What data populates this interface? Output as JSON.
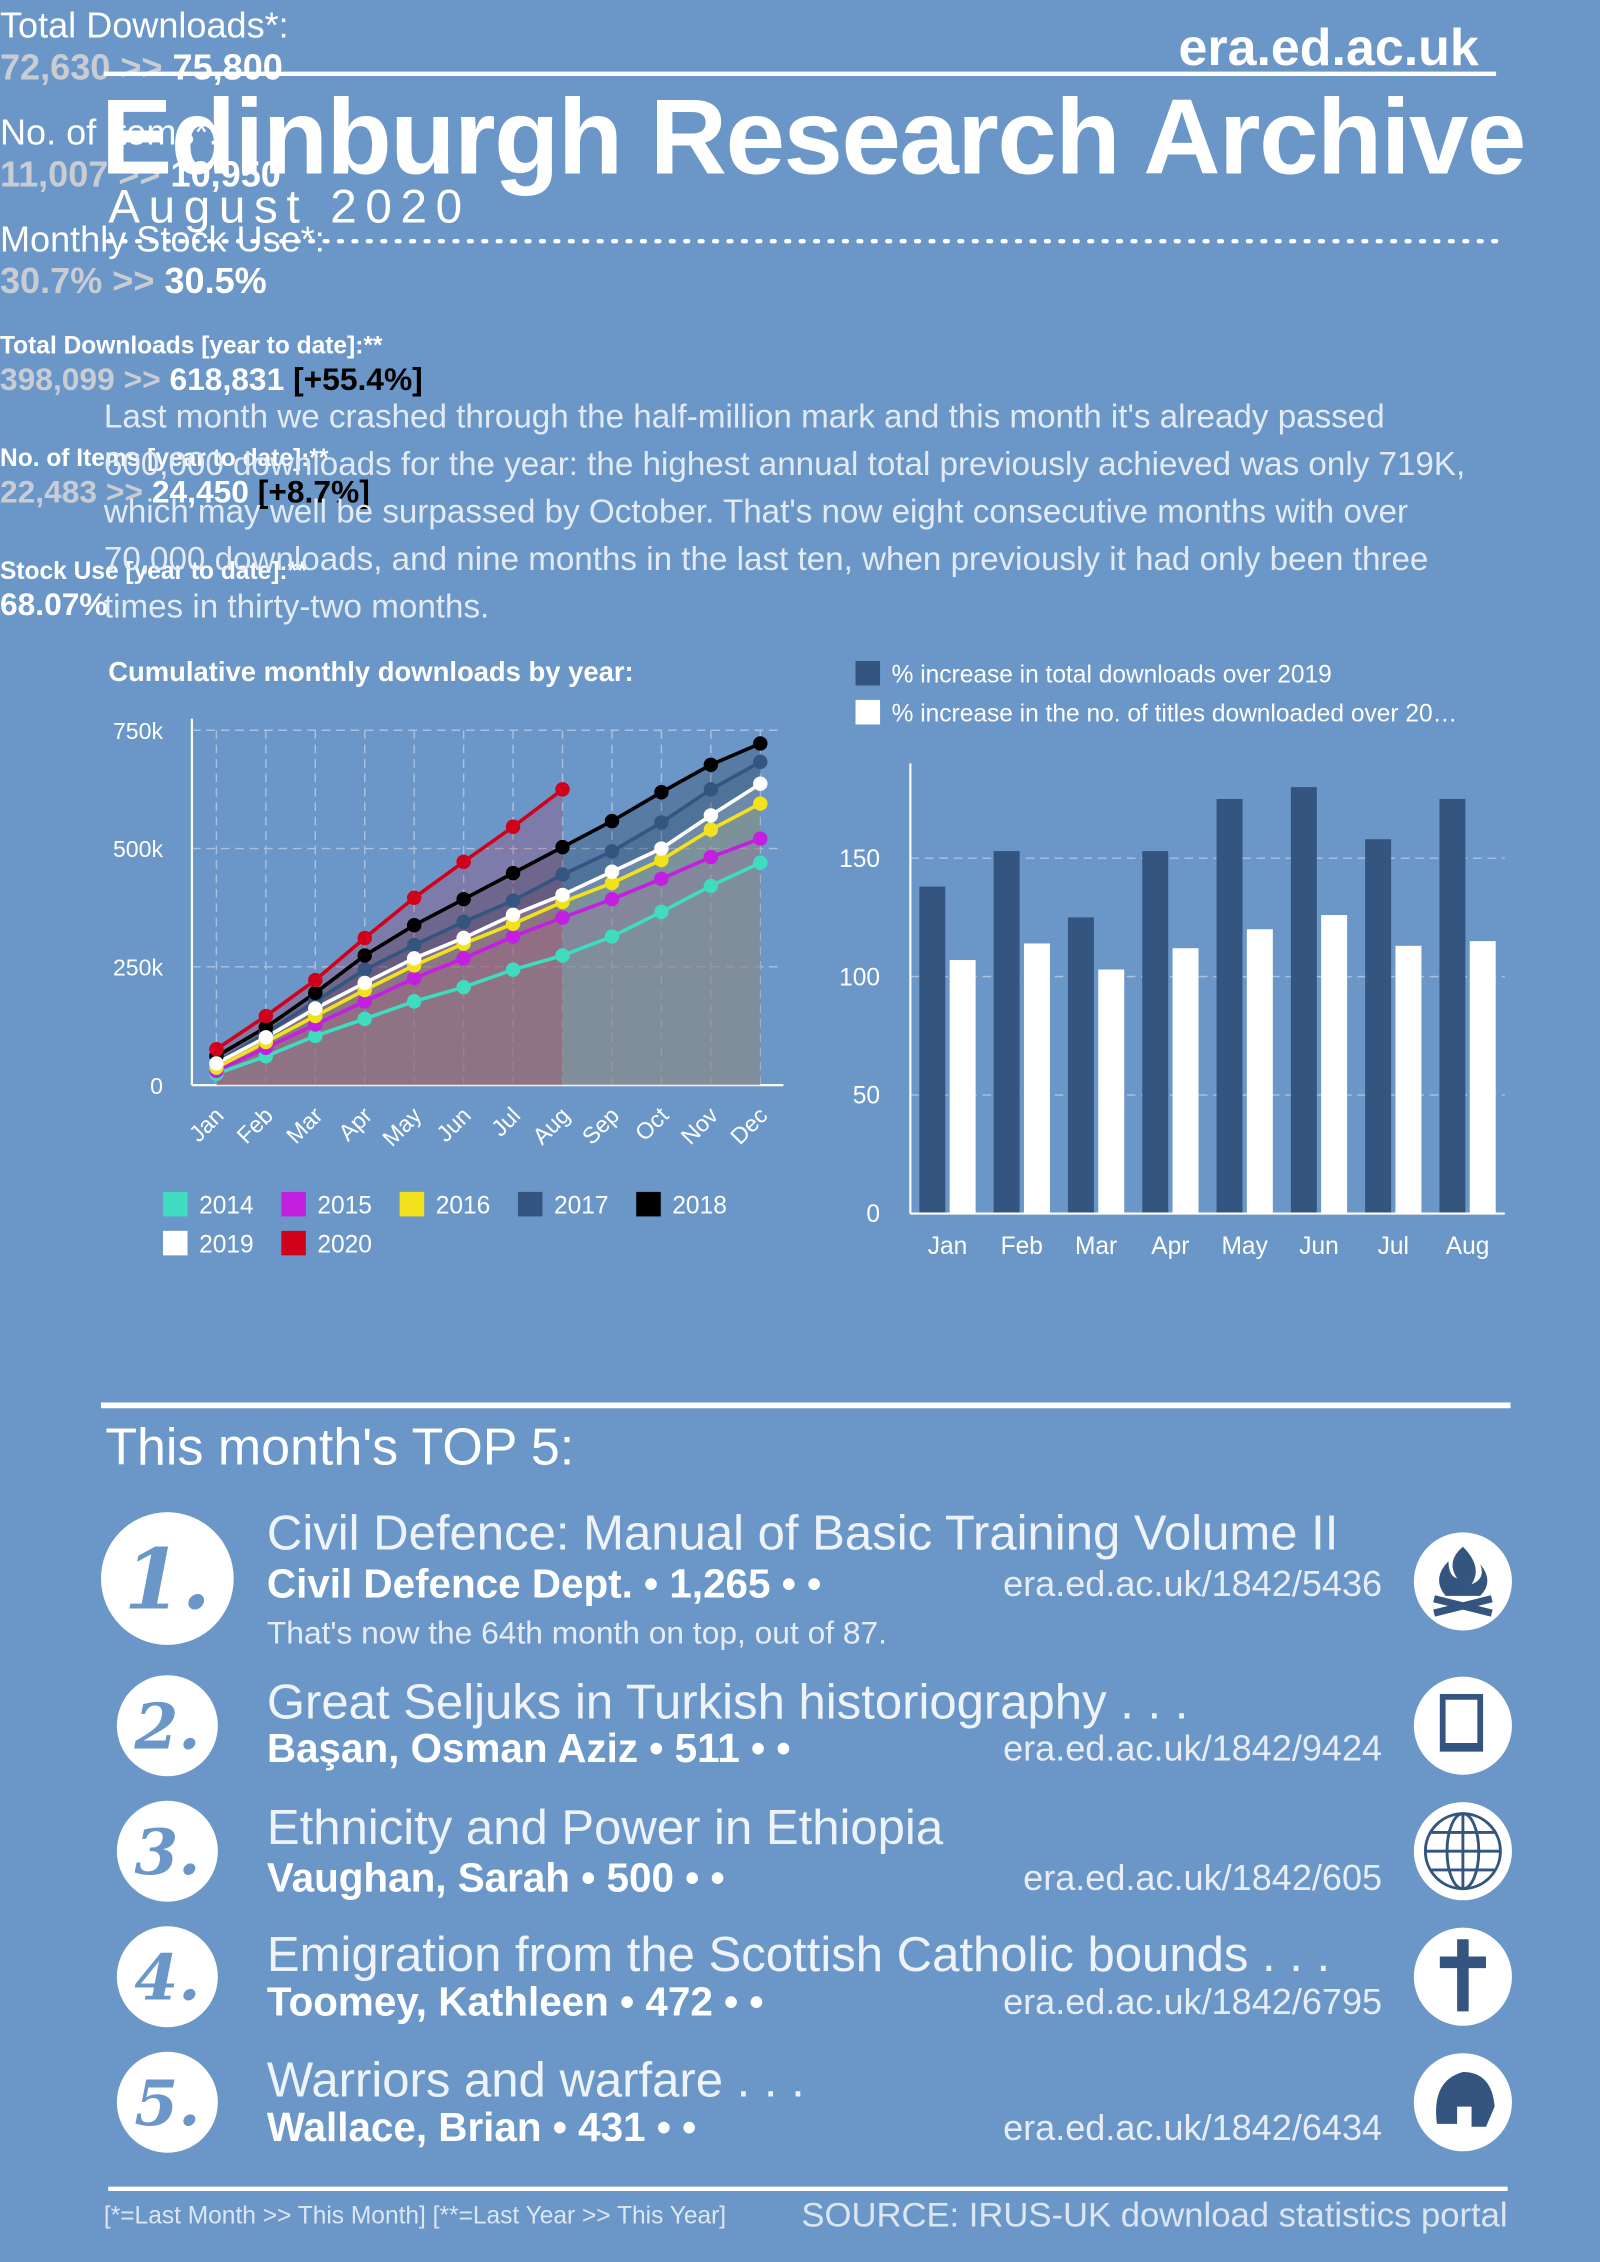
{
  "header": {
    "site": "era.ed.ac.uk",
    "title": "Edinburgh Research Archive",
    "subtitle": "August 2020"
  },
  "monthly_stats": [
    {
      "label": "Total Downloads*:",
      "previous": "72,630",
      "arrow": ">>",
      "current": "75,800"
    },
    {
      "label": "No. of Items*:",
      "previous": "11,007",
      "arrow": ">>",
      "current": "10,950"
    },
    {
      "label": "Monthly Stock Use*:",
      "previous": "30.7%",
      "arrow": ">>",
      "current": "30.5%"
    }
  ],
  "summary": "Last month we crashed through the half-million mark and this month it's already passed 600,000 downloads for the year: the highest annual total previously achieved was only 719K, which may well be surpassed by October. That's now eight consecutive months with over 70,000 downloads, and nine months in the last ten, when previously it had only been three times in thirty-two months.",
  "chart_data": [
    {
      "type": "line",
      "title": "Cumulative monthly downloads by year:",
      "area": true,
      "grid": true,
      "categories": [
        "Jan",
        "Feb",
        "Mar",
        "Apr",
        "May",
        "Jun",
        "Jul",
        "Aug",
        "Sep",
        "Oct",
        "Nov",
        "Dec"
      ],
      "ylim": [
        0,
        750000
      ],
      "yticks": [
        0,
        {
          "value": 250000,
          "label": "250k"
        },
        {
          "value": 500000,
          "label": "500k"
        },
        {
          "value": 750000,
          "label": "750k"
        }
      ],
      "series": [
        {
          "name": "2014",
          "color": "#3fdcc0",
          "values": [
            24000,
            61000,
            104000,
            140000,
            177000,
            207000,
            244000,
            274000,
            314000,
            366000,
            421000,
            470000
          ]
        },
        {
          "name": "2015",
          "color": "#c21fe0",
          "values": [
            30000,
            79000,
            128000,
            177000,
            226000,
            268000,
            314000,
            354000,
            393000,
            436000,
            482000,
            521000
          ]
        },
        {
          "name": "2016",
          "color": "#f2e21c",
          "values": [
            37000,
            91000,
            146000,
            201000,
            253000,
            299000,
            341000,
            387000,
            427000,
            476000,
            540000,
            595000
          ]
        },
        {
          "name": "2017",
          "color": "#34557f",
          "values": [
            46000,
            110000,
            177000,
            244000,
            296000,
            345000,
            390000,
            445000,
            494000,
            555000,
            625000,
            683000
          ]
        },
        {
          "name": "2018",
          "color": "#000000",
          "values": [
            61000,
            122000,
            195000,
            274000,
            338000,
            393000,
            448000,
            503000,
            558000,
            619000,
            677000,
            722000
          ]
        },
        {
          "name": "2019",
          "color": "#ffffff",
          "values": [
            46000,
            101000,
            162000,
            216000,
            268000,
            311000,
            360000,
            402000,
            451000,
            500000,
            570000,
            637000
          ]
        },
        {
          "name": "2020",
          "color": "#d0021b",
          "values": [
            76000,
            146000,
            222000,
            311000,
            396000,
            472000,
            546000,
            625000,
            null,
            null,
            null,
            null
          ]
        }
      ]
    },
    {
      "type": "bar",
      "grid": true,
      "legend": "top",
      "categories": [
        "Jan",
        "Feb",
        "Mar",
        "Apr",
        "May",
        "Jun",
        "Jul",
        "Aug"
      ],
      "ylim": [
        0,
        190
      ],
      "yticks": [
        0,
        50,
        100,
        150
      ],
      "series": [
        {
          "name": "% increase in total downloads over 2019",
          "color": "#34557f",
          "values": [
            138,
            153,
            125,
            153,
            175,
            180,
            158,
            175
          ]
        },
        {
          "name": "% increase in the no. of titles downloaded over 20…",
          "color": "#ffffff",
          "values": [
            107,
            114,
            103,
            112,
            120,
            126,
            113,
            115
          ]
        }
      ]
    }
  ],
  "year_stats": [
    {
      "label": "Total Downloads [year to date]:**",
      "previous": "398,099",
      "arrow": ">>",
      "current": "618,831",
      "change": "[+55.4%]"
    },
    {
      "label": "No. of Items [year to date]:**",
      "previous": "22,483",
      "arrow": ">>",
      "current": "24,450",
      "change": "[+8.7%]"
    },
    {
      "label": "Stock Use [year to date]:**",
      "current": "68.07%"
    }
  ],
  "top5": {
    "title": "This month's TOP 5:",
    "items": [
      {
        "rank": "1.",
        "title": "Civil Defence: Manual of Basic Training Volume II",
        "author": "Civil Defence Dept. • 1,265 • •",
        "url": "era.ed.ac.uk/1842/5436",
        "note": "That's now the 64th month on top, out of 87."
      },
      {
        "rank": "2.",
        "title": "Great Seljuks in Turkish historiography . . .",
        "author": "Başan, Osman Aziz • 511 • •",
        "url": "era.ed.ac.uk/1842/9424"
      },
      {
        "rank": "3.",
        "title": "Ethnicity and Power in Ethiopia",
        "author": "Vaughan, Sarah • 500 • •",
        "url": "era.ed.ac.uk/1842/605"
      },
      {
        "rank": "4.",
        "title": "Emigration from the Scottish Catholic bounds . . .",
        "author": "Toomey, Kathleen • 472 • •",
        "url": "era.ed.ac.uk/1842/6795"
      },
      {
        "rank": "5.",
        "title": "Warriors and warfare . . .",
        "author": "Wallace, Brian • 431 • •",
        "url": "era.ed.ac.uk/1842/6434"
      }
    ]
  },
  "footer": {
    "note": "[*=Last Month >> This Month] [**=Last Year >> This Year]",
    "source": "SOURCE: IRUS-UK download statistics portal"
  }
}
